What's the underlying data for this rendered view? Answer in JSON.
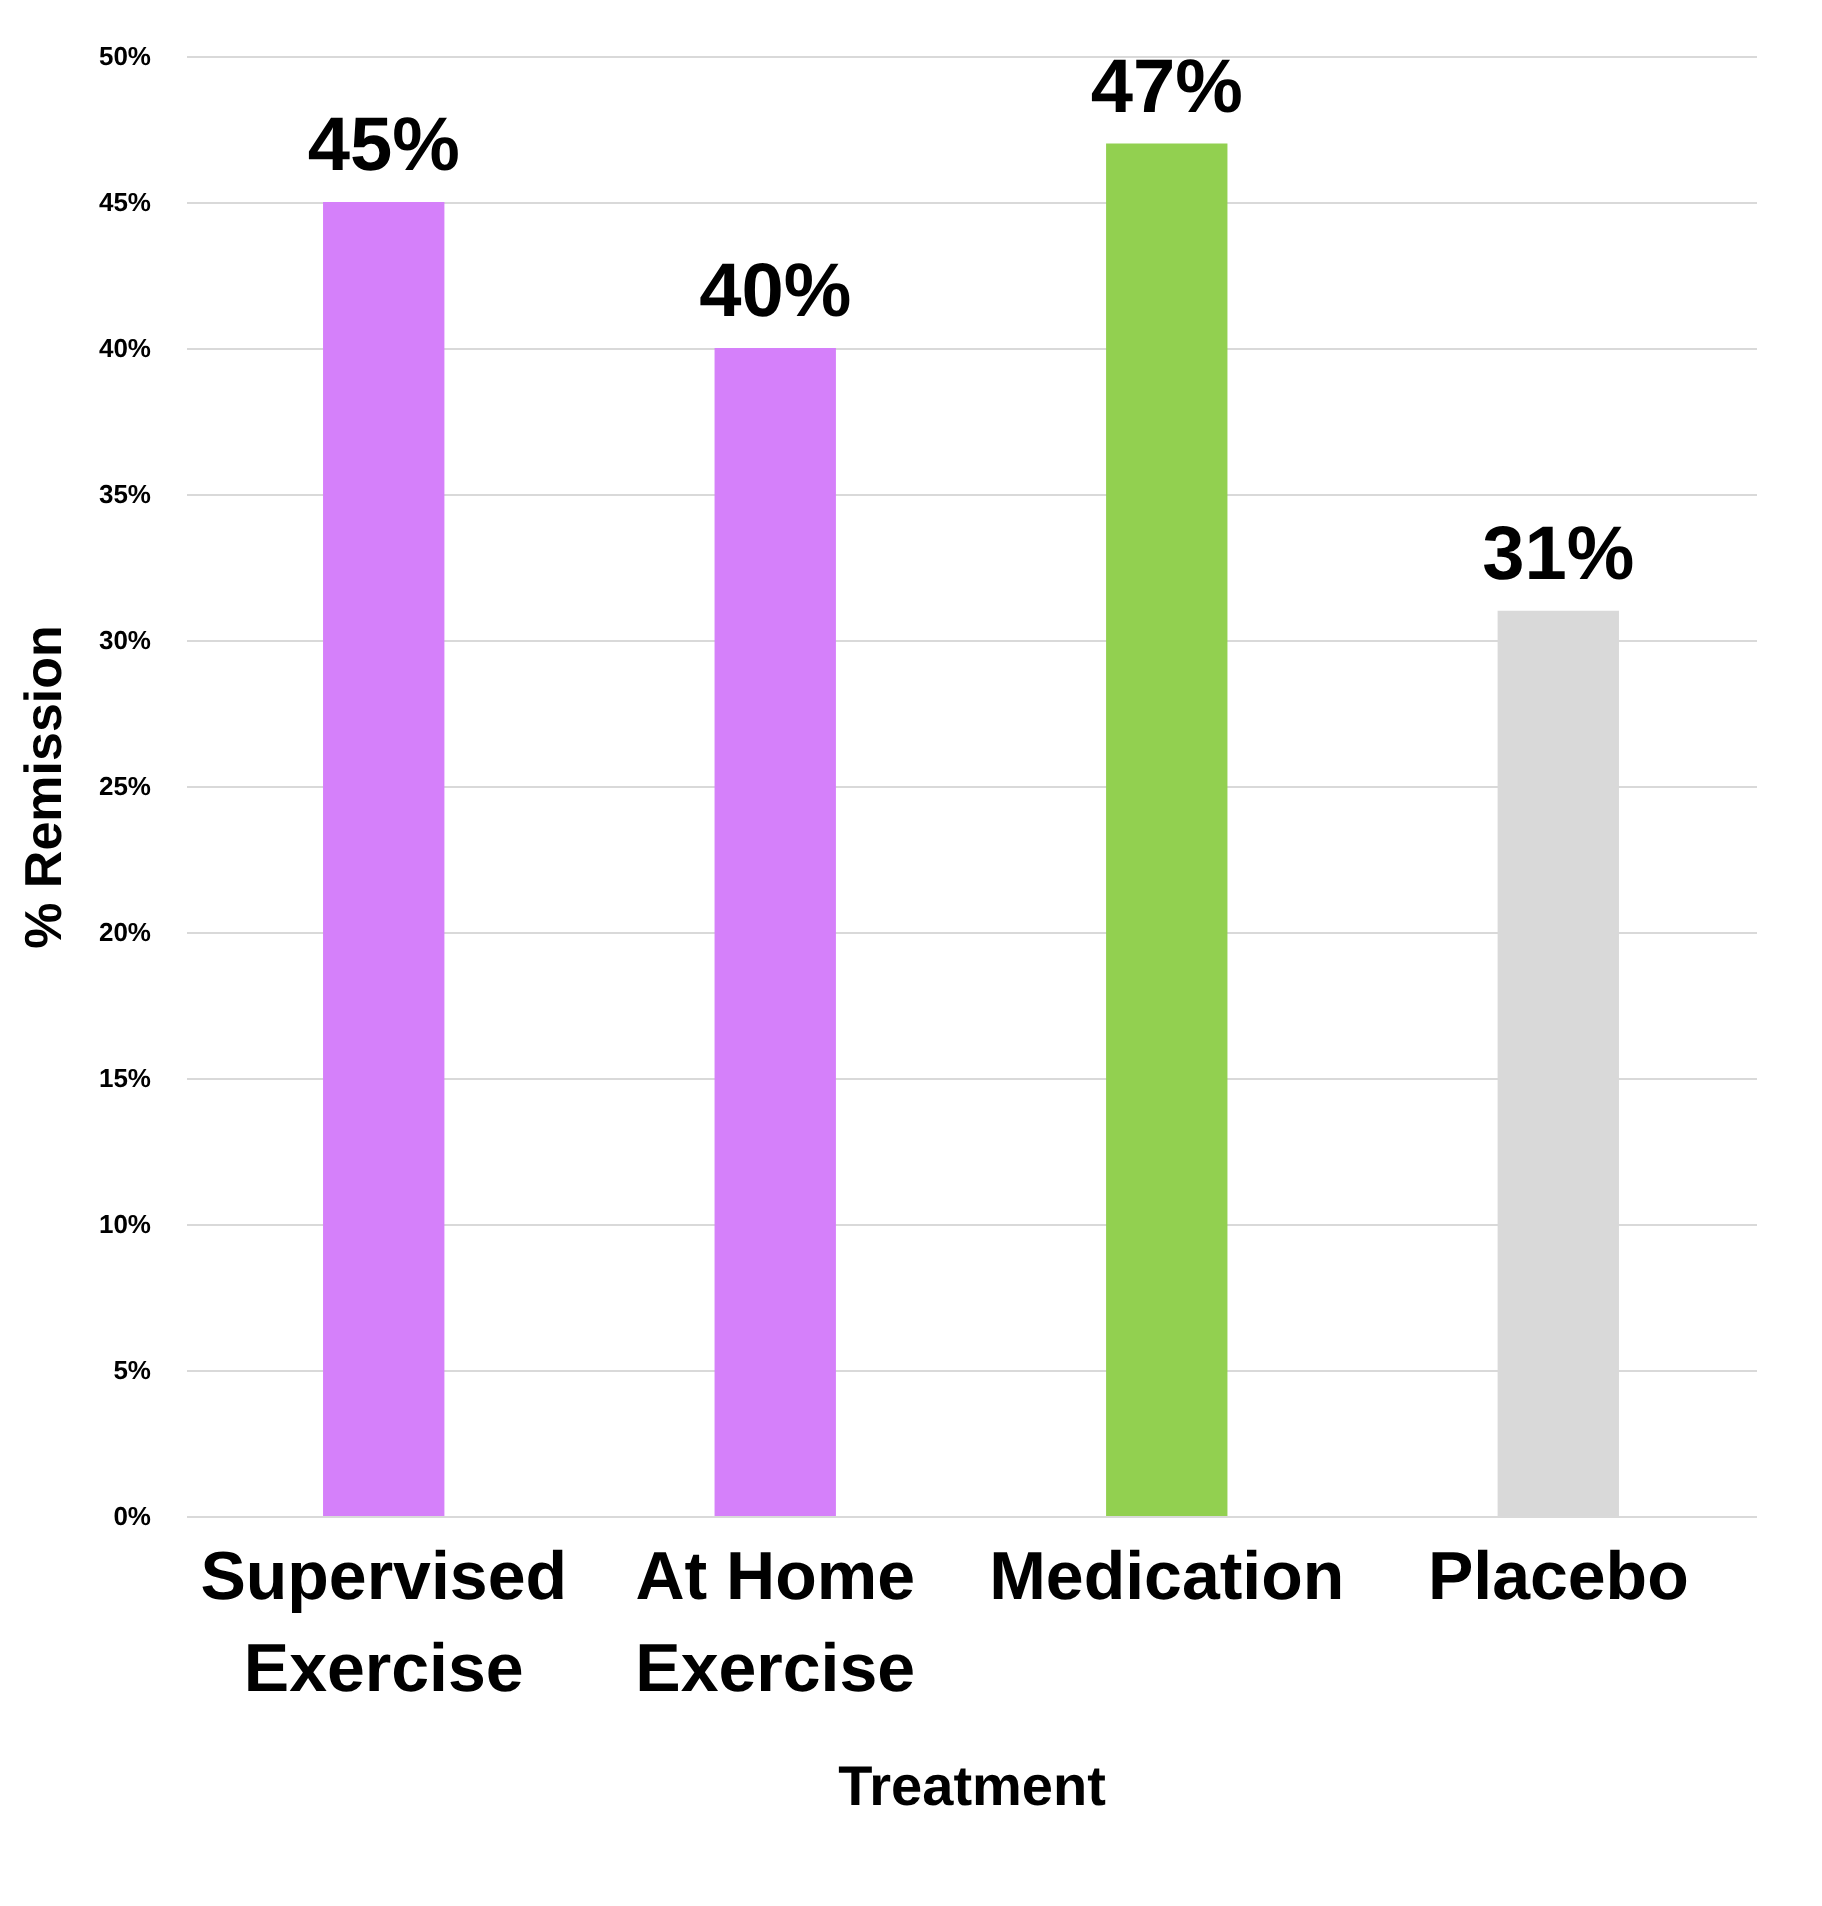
{
  "chart_data": {
    "type": "bar",
    "categories": [
      "Supervised Exercise",
      "At Home Exercise",
      "Medication",
      "Placebo"
    ],
    "values": [
      45,
      40,
      47,
      31
    ],
    "colors": [
      "#d580fa",
      "#d580fa",
      "#92d050",
      "#d9d9d9"
    ],
    "value_labels": [
      "45%",
      "40%",
      "47%",
      "31%"
    ],
    "xlabel": "Treatment",
    "ylabel": "% Remission",
    "ylim": [
      0,
      50
    ],
    "yticks": [
      {
        "value": 0,
        "label": "0%"
      },
      {
        "value": 5,
        "label": "5%"
      },
      {
        "value": 10,
        "label": "10%"
      },
      {
        "value": 15,
        "label": "15%"
      },
      {
        "value": 20,
        "label": "20%"
      },
      {
        "value": 25,
        "label": "25%"
      },
      {
        "value": 30,
        "label": "30%"
      },
      {
        "value": 35,
        "label": "35%"
      },
      {
        "value": 40,
        "label": "40%"
      },
      {
        "value": 45,
        "label": "45%"
      },
      {
        "value": 50,
        "label": "50%"
      }
    ],
    "grid": "y"
  }
}
